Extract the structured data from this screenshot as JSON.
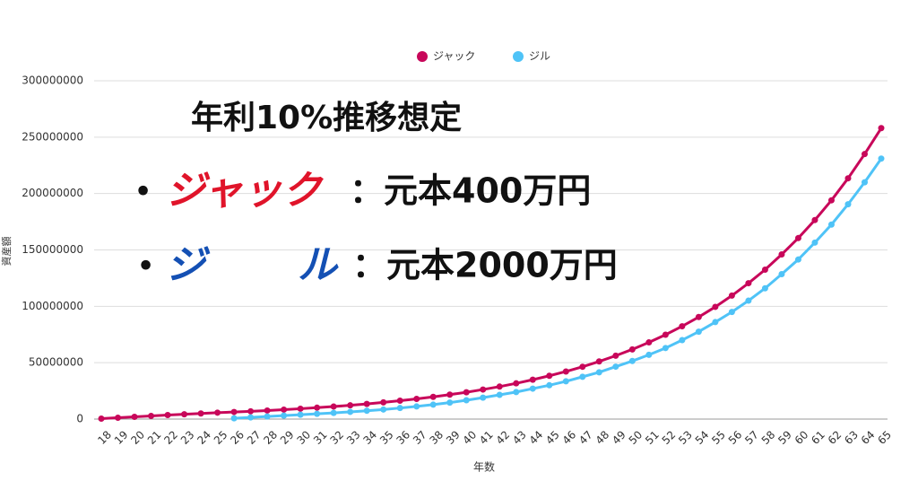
{
  "chart_data": {
    "type": "line",
    "x_label": "年数",
    "y_label": "資産額",
    "categories": [
      "18",
      "19",
      "20",
      "21",
      "22",
      "23",
      "24",
      "25",
      "26",
      "27",
      "28",
      "29",
      "30",
      "31",
      "32",
      "33",
      "34",
      "35",
      "36",
      "37",
      "38",
      "39",
      "40",
      "41",
      "42",
      "43",
      "44",
      "45",
      "46",
      "47",
      "48",
      "49",
      "50",
      "51",
      "52",
      "53",
      "54",
      "55",
      "56",
      "57",
      "58",
      "59",
      "60",
      "61",
      "62",
      "63",
      "64",
      "65"
    ],
    "series": [
      {
        "name": "ジャック",
        "color": "#c8075a",
        "values": [
          400000,
          1200000,
          2000000,
          2800000,
          3600000,
          4300000,
          5000000,
          5700000,
          6300000,
          6900000,
          7600000,
          8400000,
          9200000,
          10100000,
          11100000,
          12200000,
          13400000,
          14800000,
          16300000,
          17900000,
          19700000,
          21700000,
          23800000,
          26200000,
          28800000,
          31700000,
          34900000,
          38400000,
          42200000,
          46400000,
          51100000,
          56200000,
          61800000,
          68000000,
          74800000,
          82300000,
          90500000,
          99500000,
          109500000,
          120500000,
          132500000,
          146000000,
          160500000,
          176500000,
          194000000,
          213500000,
          235000000,
          258000000
        ]
      },
      {
        "name": "ジル",
        "color": "#4fc3f7",
        "values": [
          null,
          null,
          null,
          null,
          null,
          null,
          null,
          null,
          700000,
          1500000,
          2300000,
          3100000,
          3900000,
          4700000,
          5500000,
          6400000,
          7400000,
          8500000,
          9800000,
          11200000,
          12800000,
          14600000,
          16700000,
          19000000,
          21500000,
          24000000,
          27000000,
          30000000,
          33500000,
          37500000,
          41500000,
          46500000,
          51500000,
          57000000,
          63000000,
          70000000,
          77500000,
          86000000,
          95000000,
          105000000,
          116000000,
          128500000,
          141500000,
          156500000,
          172500000,
          190500000,
          210000000,
          231000000
        ]
      }
    ],
    "ylim": [
      0,
      300000000
    ],
    "yticks": [
      0,
      50000000,
      100000000,
      150000000,
      200000000,
      250000000,
      300000000
    ],
    "grid": true,
    "legend": "top",
    "annotations": {
      "title": "年利10%推移想定",
      "line1": {
        "bullet": "•",
        "name": "ジャック",
        "text": "：元本400万円",
        "color": "#e0142a"
      },
      "line2": {
        "bullet": "•",
        "name_start": "ジ",
        "name_end": "ル",
        "text": "：元本2000万円",
        "color": "#1450b4"
      }
    }
  }
}
